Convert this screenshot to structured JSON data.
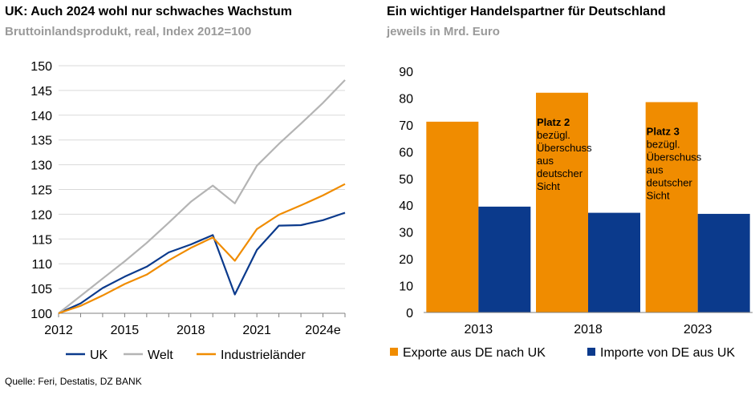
{
  "source": "Quelle: Feri, Destatis, DZ BANK",
  "chart_data": [
    {
      "type": "line",
      "title": "UK: Auch 2024 wohl nur schwaches Wachstum",
      "subtitle": "Bruttoinlandsprodukt, real, Index 2012=100",
      "x": [
        2012,
        2013,
        2014,
        2015,
        2016,
        2017,
        2018,
        2019,
        2020,
        2021,
        2022,
        2023,
        2024,
        2025
      ],
      "x_tick_labels": [
        "2012",
        "2015",
        "2018",
        "2021",
        "2024e"
      ],
      "x_tick_values": [
        2012,
        2015,
        2018,
        2021,
        2024
      ],
      "ylim": [
        100,
        150
      ],
      "y_ticks": [
        100,
        105,
        110,
        115,
        120,
        125,
        130,
        135,
        140,
        145,
        150
      ],
      "grid": true,
      "legend": "bottom",
      "series": [
        {
          "name": "UK",
          "color": "#0b3a8c",
          "values": [
            100.0,
            102.0,
            105.1,
            107.4,
            109.4,
            112.3,
            113.9,
            115.8,
            103.8,
            112.8,
            117.7,
            117.8,
            118.8,
            120.3
          ]
        },
        {
          "name": "Welt",
          "color": "#b4b4b4",
          "values": [
            100.0,
            103.5,
            107.0,
            110.5,
            114.2,
            118.3,
            122.5,
            125.8,
            122.2,
            129.8,
            134.2,
            138.3,
            142.5,
            147.1
          ]
        },
        {
          "name": "Industrieländer",
          "color": "#f08c00",
          "values": [
            100.0,
            101.5,
            103.6,
            105.9,
            107.8,
            110.7,
            113.2,
            115.3,
            110.6,
            117.0,
            119.9,
            121.8,
            123.8,
            126.1
          ]
        }
      ]
    },
    {
      "type": "bar",
      "title": "Ein wichtiger Handelspartner für Deutschland",
      "subtitle": "jeweils in Mrd. Euro",
      "categories": [
        "2013",
        "2018",
        "2023"
      ],
      "ylim": [
        0,
        90
      ],
      "y_ticks": [
        0,
        10,
        20,
        30,
        40,
        50,
        60,
        70,
        80,
        90
      ],
      "grid": false,
      "legend": "bottom",
      "series": [
        {
          "name": "Exporte aus DE nach UK",
          "color": "#f08c00",
          "values": [
            71.2,
            82.0,
            78.5
          ]
        },
        {
          "name": "Importe von DE aus UK",
          "color": "#0b3a8c",
          "values": [
            39.5,
            37.2,
            36.8
          ]
        }
      ],
      "annotations": [
        {
          "category": "2018",
          "heading": "Platz 2",
          "lines": [
            "bezügl.",
            "Überschuss",
            "aus",
            "deutscher",
            "Sicht"
          ]
        },
        {
          "category": "2023",
          "heading": "Platz 3",
          "lines": [
            "bezügl.",
            "Überschuss",
            "aus",
            "deutscher",
            "Sicht"
          ]
        }
      ]
    }
  ]
}
